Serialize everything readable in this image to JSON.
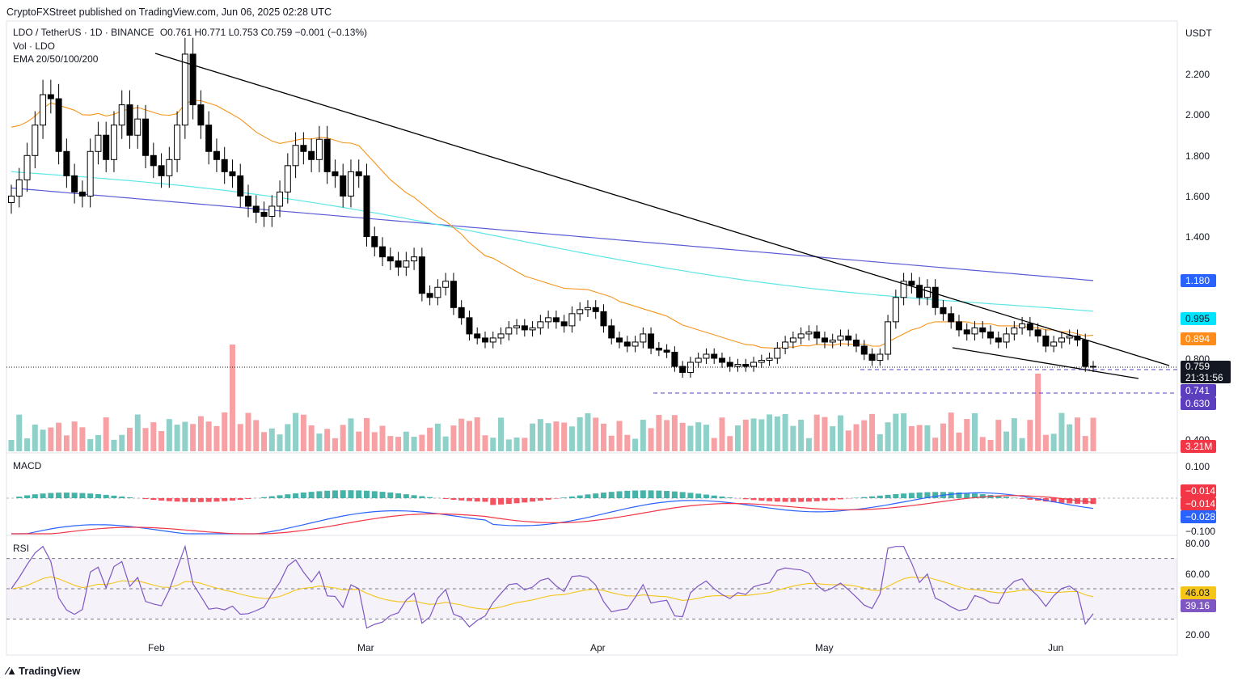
{
  "header": {
    "published": "CryptoFXStreet published on TradingView.com, Jun 06, 2025 02:28 UTC"
  },
  "legend": {
    "symbol": "LDO / TetherUS · 1D · BINANCE",
    "ohlc": "O0.761 H0.771 L0.753 C0.759 −0.001 (−0.13%)",
    "vol": "Vol · LDO",
    "ema": "EMA 20/50/100/200"
  },
  "currency": "USDT",
  "panes": {
    "macd": "MACD",
    "rsi": "RSI"
  },
  "brand": {
    "name": "TradingView",
    "logo_icon": "tradingview-logo-icon"
  },
  "colors": {
    "up": "#ffffff",
    "down": "#000000",
    "ema20": "#f7931a",
    "ema50": "#f7931a",
    "ema100": "#5ee6e6",
    "ema200": "#5b5bd6",
    "macd": "#2962ff",
    "signal": "#f23645",
    "rsi": "#7e57c2",
    "rsi_ma": "#f5c518"
  },
  "tags": {
    "ema200": {
      "value": "1.180",
      "color": "#2962ff"
    },
    "ema100": {
      "value": "0.995",
      "color": "#00e5ff"
    },
    "ema50": {
      "value": "0.894",
      "color": "#ff8c1a"
    },
    "last": {
      "value": "0.759",
      "timer": "21:31:56",
      "color": "#131722"
    },
    "support1": {
      "value": "0.741",
      "color": "#5b3fbf"
    },
    "support2": {
      "value": "0.630",
      "color": "#5b3fbf"
    },
    "volume": {
      "value": "3.21M",
      "color": "#f23645"
    },
    "macd_hist": {
      "value": "−0.014",
      "color": "#f23645"
    },
    "macd_signal": {
      "value": "−0.014",
      "color": "#f23645"
    },
    "macd_line": {
      "value": "−0.028",
      "color": "#2962ff"
    },
    "rsi_ma": {
      "value": "46.03",
      "color": "#f5c518"
    },
    "rsi": {
      "value": "39.16",
      "color": "#7e57c2"
    }
  },
  "chart_data": [
    {
      "type": "candlestick",
      "title": "LDO / TetherUS · 1D · BINANCE",
      "x_ticks": [
        "Feb",
        "Mar",
        "Apr",
        "May",
        "Jun"
      ],
      "y_ticks": [
        "2.200",
        "2.000",
        "1.800",
        "1.600",
        "1.400",
        "0.800",
        "0.400"
      ],
      "ylim": [
        0.35,
        2.35
      ],
      "close": [
        1.6,
        1.68,
        1.8,
        1.95,
        2.1,
        2.08,
        1.82,
        1.7,
        1.62,
        1.6,
        1.82,
        1.9,
        1.78,
        1.95,
        2.05,
        1.9,
        1.98,
        1.8,
        1.75,
        1.7,
        1.78,
        1.95,
        2.3,
        2.05,
        1.95,
        1.82,
        1.78,
        1.72,
        1.7,
        1.6,
        1.55,
        1.52,
        1.5,
        1.55,
        1.62,
        1.75,
        1.85,
        1.82,
        1.78,
        1.88,
        1.72,
        1.7,
        1.6,
        1.72,
        1.7,
        1.4,
        1.35,
        1.3,
        1.28,
        1.25,
        1.28,
        1.3,
        1.12,
        1.1,
        1.15,
        1.18,
        1.05,
        1.0,
        0.92,
        0.9,
        0.88,
        0.9,
        0.92,
        0.95,
        0.96,
        0.94,
        0.95,
        0.98,
        1.0,
        0.98,
        0.96,
        1.02,
        1.04,
        1.05,
        1.03,
        0.96,
        0.9,
        0.88,
        0.86,
        0.88,
        0.92,
        0.85,
        0.84,
        0.83,
        0.76,
        0.73,
        0.78,
        0.8,
        0.82,
        0.8,
        0.78,
        0.76,
        0.77,
        0.76,
        0.78,
        0.79,
        0.8,
        0.85,
        0.88,
        0.9,
        0.92,
        0.93,
        0.9,
        0.88,
        0.89,
        0.91,
        0.89,
        0.86,
        0.82,
        0.79,
        0.82,
        0.98,
        1.1,
        1.18,
        1.16,
        1.1,
        1.15,
        1.05,
        1.02,
        0.98,
        0.94,
        0.92,
        0.95,
        0.93,
        0.9,
        0.88,
        0.92,
        0.95,
        0.97,
        0.94,
        0.91,
        0.86,
        0.88,
        0.9,
        0.91,
        0.89,
        0.76,
        0.759
      ],
      "ema20": [
        1.72,
        1.73,
        1.75,
        1.78,
        1.82,
        1.85,
        1.84,
        1.83,
        1.82,
        1.8,
        1.8,
        1.81,
        1.8,
        1.81,
        1.83,
        1.84,
        1.85,
        1.84,
        1.83,
        1.82,
        1.82,
        1.83,
        1.88,
        1.9,
        1.9,
        1.89,
        1.88,
        1.86,
        1.84,
        1.82,
        1.79,
        1.76,
        1.74,
        1.72,
        1.71,
        1.72,
        1.73,
        1.74,
        1.74,
        1.75,
        1.75,
        1.74,
        1.73,
        1.73,
        1.72,
        1.68,
        1.64,
        1.6,
        1.56,
        1.53,
        1.5,
        1.48,
        1.45,
        1.42,
        1.39,
        1.37,
        1.34,
        1.31,
        1.27,
        1.24,
        1.21,
        1.18,
        1.16,
        1.14,
        1.12,
        1.1,
        1.09,
        1.08,
        1.07,
        1.06,
        1.05,
        1.05,
        1.05,
        1.05,
        1.04,
        1.03,
        1.02,
        1.0,
        0.99,
        0.98,
        0.97,
        0.96,
        0.95,
        0.94,
        0.92,
        0.9,
        0.89,
        0.88,
        0.87,
        0.86,
        0.85,
        0.84,
        0.83,
        0.82,
        0.82,
        0.81,
        0.81,
        0.81,
        0.82,
        0.82,
        0.83,
        0.83,
        0.84,
        0.84,
        0.84,
        0.85,
        0.85,
        0.85,
        0.85,
        0.84,
        0.84,
        0.86,
        0.88,
        0.9,
        0.92,
        0.93,
        0.95,
        0.96,
        0.96,
        0.96,
        0.96,
        0.96,
        0.95,
        0.95,
        0.95,
        0.94,
        0.94,
        0.94,
        0.94,
        0.93,
        0.93,
        0.92,
        0.92,
        0.91,
        0.91,
        0.9,
        0.89,
        0.894
      ]
    },
    {
      "type": "bar",
      "title": "Vol · LDO",
      "last_value": "3.21M"
    },
    {
      "type": "line",
      "title": "MACD",
      "y_ticks": [
        "0.100",
        "−0.100"
      ],
      "series": [
        {
          "name": "MACD",
          "last": "−0.028"
        },
        {
          "name": "Signal",
          "last": "−0.014"
        },
        {
          "name": "Histogram",
          "last": "−0.014"
        }
      ]
    },
    {
      "type": "line",
      "title": "RSI",
      "y_ticks": [
        "80.00",
        "60.00",
        "20.00"
      ],
      "ylim": [
        20,
        80
      ],
      "bands": [
        70,
        50,
        30
      ],
      "series": [
        {
          "name": "RSI",
          "last": "39.16"
        },
        {
          "name": "RSI MA",
          "last": "46.03"
        }
      ]
    }
  ]
}
